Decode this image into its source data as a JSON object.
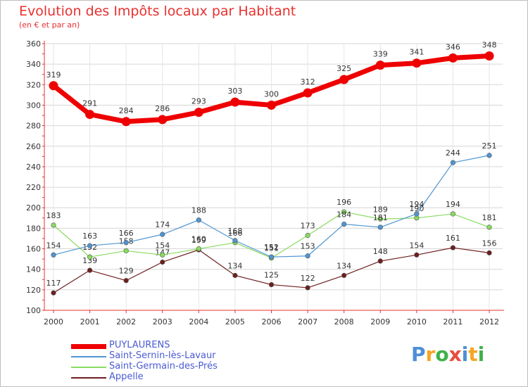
{
  "title": "Evolution des Impôts locaux par Habitant",
  "subtitle": "(en € et par an)",
  "chart_data": {
    "type": "line",
    "x": [
      "2000",
      "2001",
      "2002",
      "2003",
      "2004",
      "2005",
      "2006",
      "2007",
      "2008",
      "2009",
      "2010",
      "2011",
      "2012"
    ],
    "ylim": [
      100,
      360
    ],
    "yticks": [
      100,
      120,
      140,
      160,
      180,
      200,
      220,
      240,
      260,
      280,
      300,
      320,
      340,
      360
    ],
    "grid": true,
    "legend_position": "bottom-left",
    "series": [
      {
        "name": "PUYLAURENS",
        "values": [
          319,
          291,
          284,
          286,
          293,
          303,
          300,
          312,
          325,
          339,
          341,
          346,
          348
        ],
        "color": "#ee0000"
      },
      {
        "name": "Saint-Sernin-lès-Lavaur",
        "values": [
          154,
          163,
          166,
          174,
          188,
          168,
          152,
          153,
          184,
          181,
          194,
          244,
          251
        ],
        "color": "#4f95d1"
      },
      {
        "name": "Saint-Germain-des-Prés",
        "values": [
          183,
          152,
          158,
          154,
          160,
          166,
          151,
          173,
          196,
          189,
          190,
          194,
          181
        ],
        "color": "#88dc5f"
      },
      {
        "name": "Appelle",
        "values": [
          117,
          139,
          129,
          147,
          159,
          134,
          125,
          122,
          134,
          148,
          154,
          161,
          156
        ],
        "color": "#6e1e1e"
      }
    ]
  },
  "logo": {
    "letters": [
      "P",
      "r",
      "o",
      "x",
      "i",
      "t",
      "i"
    ],
    "colors": [
      "#4d8fd6",
      "#f5a623",
      "#3fb24a",
      "#e84c3d",
      "#4d8fd6",
      "#f5a623",
      "#3fb24a"
    ]
  }
}
